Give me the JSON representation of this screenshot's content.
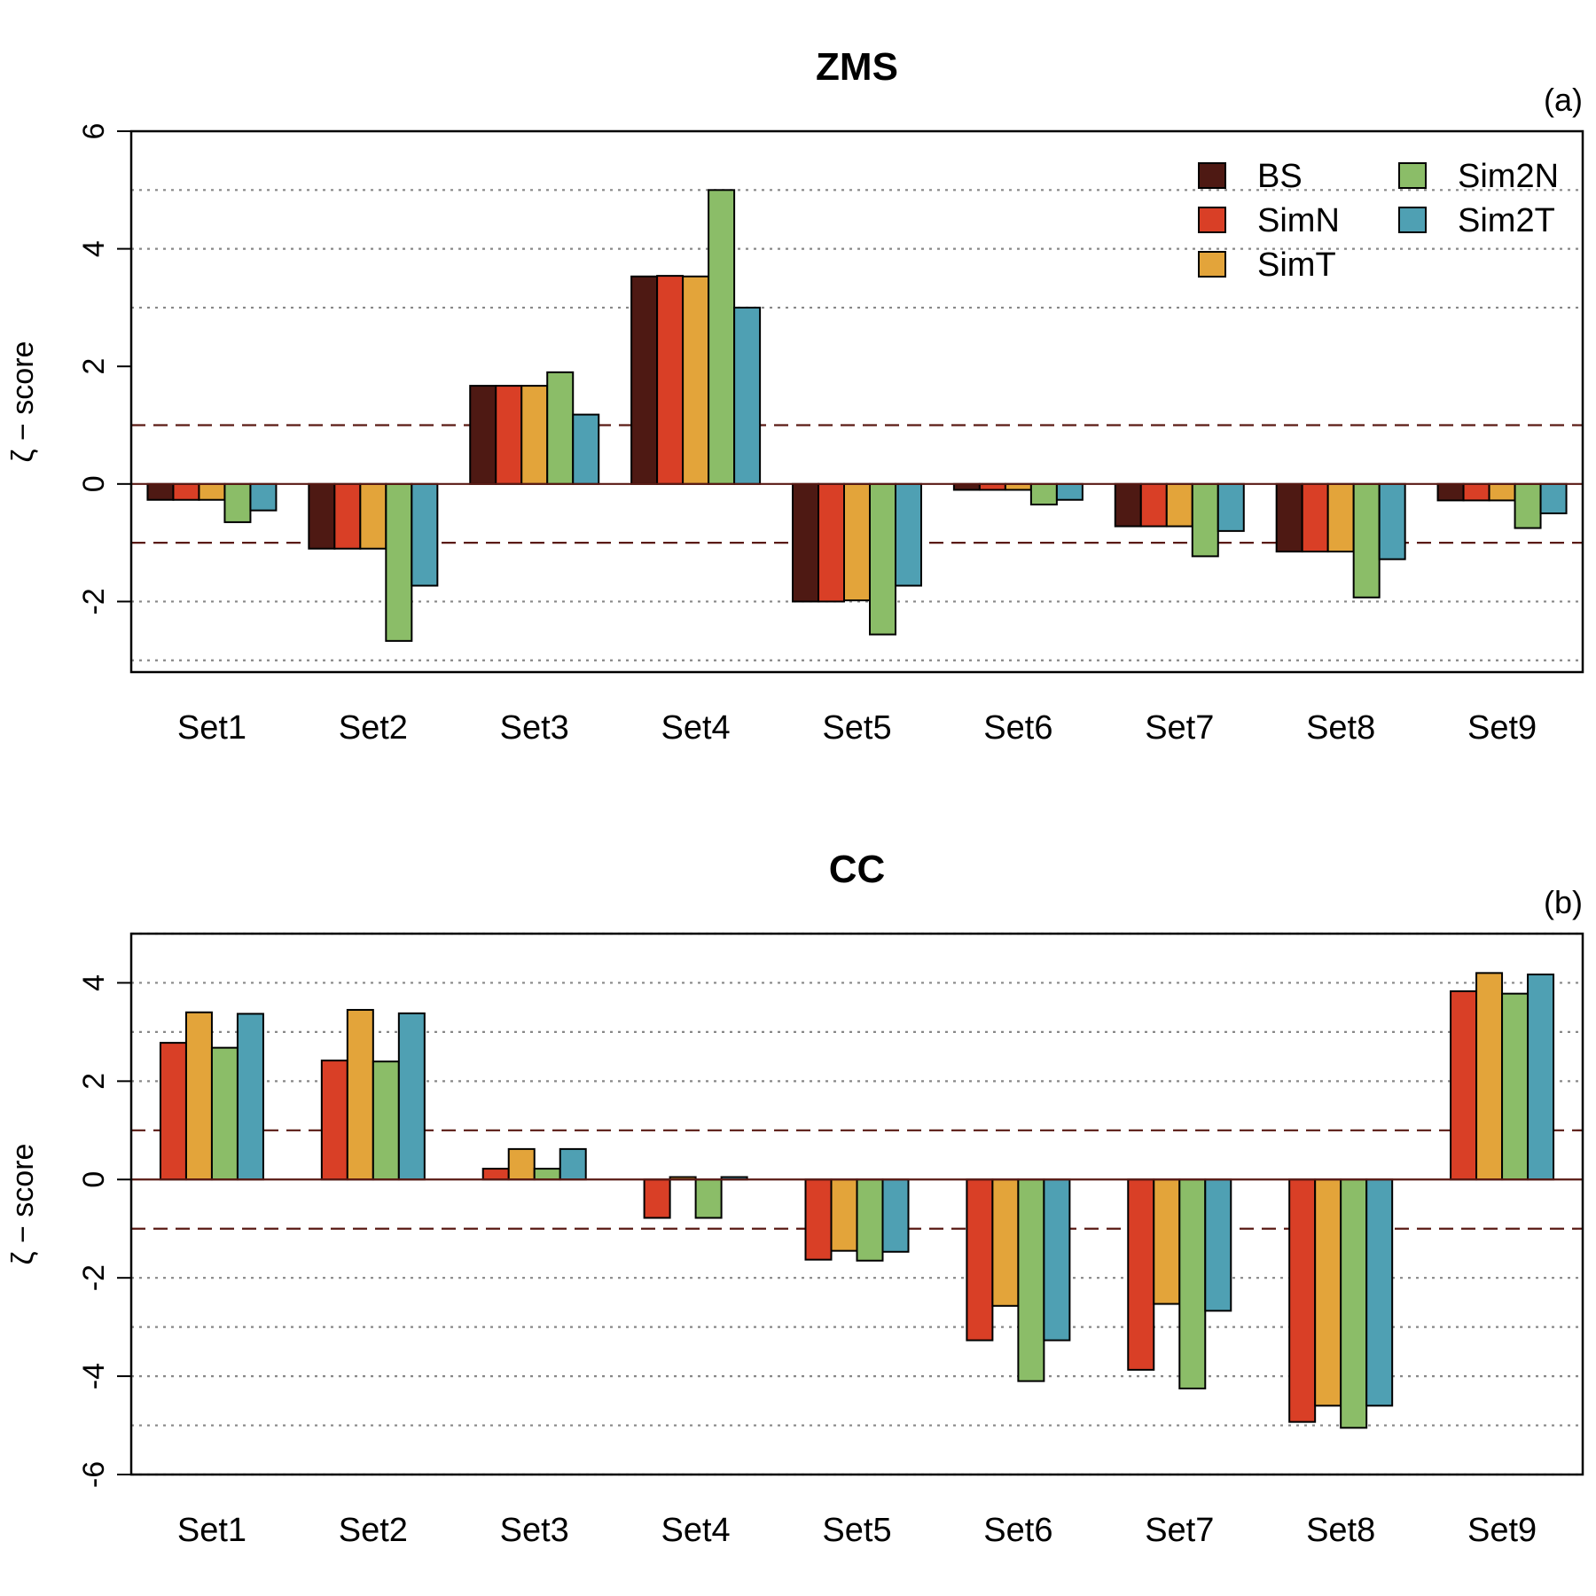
{
  "chart_data": [
    {
      "type": "bar",
      "title": "ZMS",
      "panel_tag": "(a)",
      "ylabel": "ζ − score",
      "ylim": [
        -3.2,
        6
      ],
      "yticks": [
        -2,
        0,
        2,
        4,
        6
      ],
      "grid_dotted": [
        -3,
        -2,
        3,
        4,
        5
      ],
      "ref_dashed": [
        -1,
        1
      ],
      "categories": [
        "Set1",
        "Set2",
        "Set3",
        "Set4",
        "Set5",
        "Set6",
        "Set7",
        "Set8",
        "Set9"
      ],
      "legend": {
        "position": "top-right"
      },
      "series": [
        {
          "name": "BS",
          "color": "#4e1913",
          "values": [
            -0.27,
            -1.1,
            1.67,
            3.53,
            -2.0,
            -0.1,
            -0.72,
            -1.15,
            -0.28
          ]
        },
        {
          "name": "SimN",
          "color": "#d93f26",
          "values": [
            -0.27,
            -1.1,
            1.67,
            3.54,
            -2.0,
            -0.1,
            -0.72,
            -1.15,
            -0.28
          ]
        },
        {
          "name": "SimT",
          "color": "#e3a43a",
          "values": [
            -0.27,
            -1.1,
            1.67,
            3.53,
            -1.98,
            -0.1,
            -0.72,
            -1.15,
            -0.28
          ]
        },
        {
          "name": "Sim2N",
          "color": "#8bbd68",
          "values": [
            -0.65,
            -2.67,
            1.9,
            5.0,
            -2.56,
            -0.35,
            -1.23,
            -1.93,
            -0.75
          ]
        },
        {
          "name": "Sim2T",
          "color": "#4fa0b3",
          "values": [
            -0.45,
            -1.73,
            1.18,
            3.0,
            -1.73,
            -0.27,
            -0.8,
            -1.28,
            -0.5
          ]
        }
      ]
    },
    {
      "type": "bar",
      "title": "CC",
      "panel_tag": "(b)",
      "ylabel": "ζ − score",
      "ylim": [
        -6,
        5
      ],
      "yticks": [
        -6,
        -4,
        -2,
        0,
        2,
        4
      ],
      "grid_dotted": [
        -6,
        -5,
        -4,
        -3,
        -2,
        2,
        3,
        4,
        5
      ],
      "ref_dashed": [
        -1,
        1
      ],
      "categories": [
        "Set1",
        "Set2",
        "Set3",
        "Set4",
        "Set5",
        "Set6",
        "Set7",
        "Set8",
        "Set9"
      ],
      "series": [
        {
          "name": "SimN",
          "color": "#d93f26",
          "values": [
            2.78,
            2.42,
            0.22,
            -0.78,
            -1.63,
            -3.27,
            -3.87,
            -4.93,
            3.83
          ]
        },
        {
          "name": "SimT",
          "color": "#e3a43a",
          "values": [
            3.4,
            3.45,
            0.62,
            0.05,
            -1.45,
            -2.57,
            -2.53,
            -4.6,
            4.2
          ]
        },
        {
          "name": "Sim2N",
          "color": "#8bbd68",
          "values": [
            2.68,
            2.4,
            0.22,
            -0.78,
            -1.65,
            -4.1,
            -4.25,
            -5.05,
            3.78
          ]
        },
        {
          "name": "Sim2T",
          "color": "#4fa0b3",
          "values": [
            3.37,
            3.38,
            0.62,
            0.05,
            -1.47,
            -3.27,
            -2.67,
            -4.6,
            4.17
          ]
        }
      ]
    }
  ]
}
